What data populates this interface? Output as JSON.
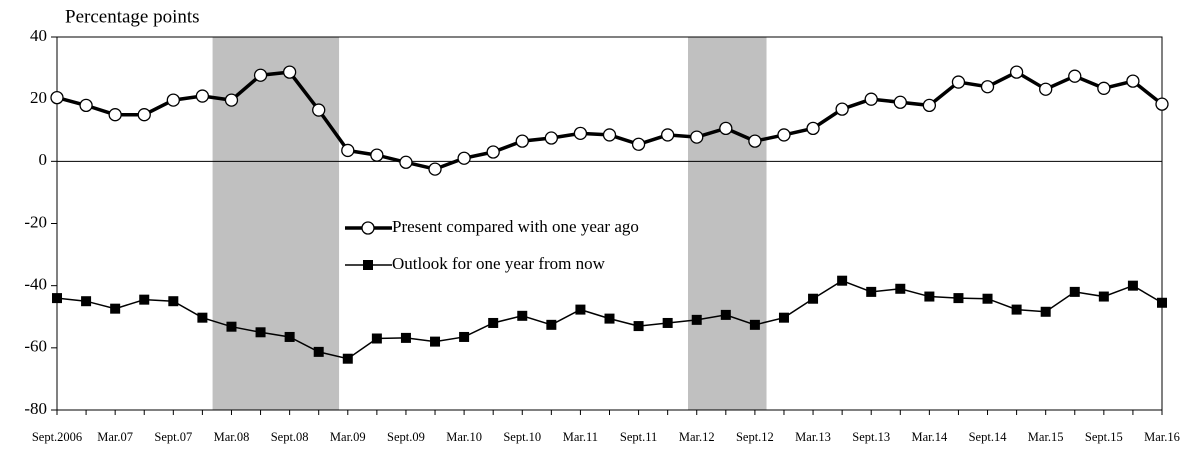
{
  "chart_data": {
    "type": "line",
    "y_label": "Percentage points",
    "categories": [
      "Sept.2006",
      null,
      "Mar.07",
      null,
      "Sept.07",
      null,
      "Mar.08",
      null,
      "Sept.08",
      null,
      "Mar.09",
      null,
      "Sept.09",
      null,
      "Mar.10",
      null,
      "Sept.10",
      null,
      "Mar.11",
      null,
      "Sept.11",
      null,
      "Mar.12",
      null,
      "Sept.12",
      null,
      "Mar.13",
      null,
      "Sept.13",
      null,
      "Mar.14",
      null,
      "Sept.14",
      null,
      "Mar.15",
      null,
      "Sept.15",
      null,
      "Mar.16"
    ],
    "series": [
      {
        "name": "Present compared with one year ago",
        "color": "#000000",
        "marker": "circle",
        "values": [
          20.5,
          18,
          15,
          15,
          19.7,
          21,
          19.7,
          27.7,
          28.7,
          16.5,
          3.5,
          2,
          -0.3,
          -2.5,
          1,
          3,
          6.5,
          7.5,
          9,
          8.5,
          5.5,
          8.5,
          7.8,
          10.6,
          6.5,
          8.5,
          10.6,
          16.8,
          20,
          19,
          18,
          25.5,
          24,
          28.7,
          23.2,
          27.4,
          23.5,
          25.8,
          18.4
        ]
      },
      {
        "name": "Outlook for one year from now",
        "color": "#000000",
        "marker": "square",
        "values": [
          -44,
          -45,
          -47.4,
          -44.5,
          -45,
          -50.3,
          -53.2,
          -55,
          -56.5,
          -61.3,
          -63.5,
          -57,
          -56.8,
          -58,
          -56.5,
          -52,
          -49.7,
          -52.6,
          -47.7,
          -50.6,
          -53,
          -52,
          -51,
          -49.4,
          -52.6,
          -50.3,
          -44.2,
          -38.4,
          -42,
          -41,
          -43.5,
          -44,
          -44.2,
          -47.7,
          -48.4,
          -42,
          -43.5,
          -40,
          -45.5
        ]
      }
    ],
    "shaded_periods": [
      [
        5.35,
        9.7
      ],
      [
        21.7,
        24.4
      ]
    ],
    "shade_color": "#c0c0c0",
    "ylim": [
      -80,
      40
    ],
    "yticks": [
      -80,
      -60,
      -40,
      -20,
      0,
      20,
      40
    ],
    "zero_line": true
  }
}
